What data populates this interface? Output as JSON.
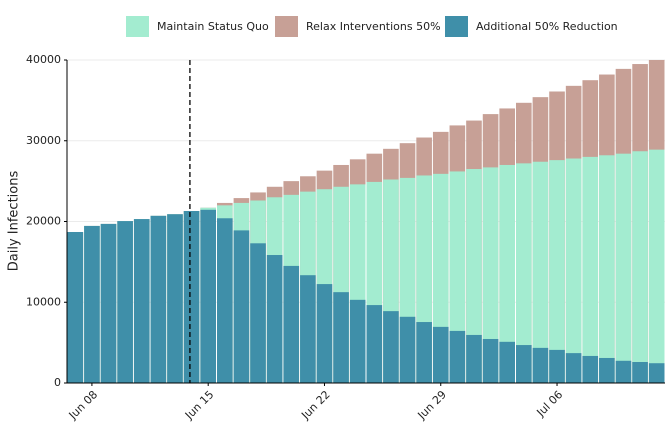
{
  "chart_data": {
    "type": "bar",
    "y_label": "Daily Infections",
    "categories": [
      null,
      "Jun 08",
      null,
      null,
      null,
      null,
      null,
      null,
      "Jun 15",
      null,
      null,
      null,
      null,
      null,
      null,
      "Jun 22",
      null,
      null,
      null,
      null,
      null,
      null,
      "Jun 29",
      null,
      null,
      null,
      null,
      null,
      null,
      "Jul 06",
      null,
      null,
      null,
      null,
      null,
      null
    ],
    "series": [
      {
        "name": "Relax Interventions 50%",
        "color": "#c7a096",
        "values": [
          18700,
          19450,
          19700,
          20050,
          20300,
          20700,
          20900,
          21300,
          21700,
          22300,
          22900,
          23600,
          24300,
          25000,
          25600,
          26300,
          27000,
          27700,
          28400,
          29000,
          29700,
          30400,
          31100,
          31900,
          32500,
          33300,
          34000,
          34700,
          35400,
          36100,
          36800,
          37500,
          38200,
          38900,
          39500,
          40000
        ]
      },
      {
        "name": "Maintain Status Quo",
        "color": "#a3ecd0",
        "values": [
          18700,
          19450,
          19700,
          20050,
          20300,
          20700,
          20900,
          21300,
          21700,
          22000,
          22300,
          22600,
          23000,
          23300,
          23700,
          24000,
          24300,
          24600,
          24900,
          25200,
          25400,
          25700,
          25900,
          26200,
          26500,
          26700,
          27000,
          27200,
          27400,
          27600,
          27800,
          28000,
          28200,
          28400,
          28700,
          28900
        ]
      },
      {
        "name": "Additional 50% Reduction",
        "color": "#3f8fa9",
        "values": [
          18700,
          19450,
          19700,
          20050,
          20300,
          20700,
          20900,
          21300,
          21450,
          20400,
          18900,
          17300,
          15850,
          14500,
          13350,
          12250,
          11250,
          10300,
          9650,
          8900,
          8200,
          7550,
          6950,
          6450,
          5950,
          5450,
          5100,
          4700,
          4350,
          4100,
          3700,
          3350,
          3100,
          2750,
          2600,
          2450
        ]
      }
    ],
    "legend_order": [
      1,
      0,
      2
    ],
    "legend_position": "top",
    "overlap": true,
    "reference_line": {
      "category_index": 7,
      "style": "dashed"
    },
    "ylim": [
      0,
      40000
    ],
    "yticks": [
      0,
      10000,
      20000,
      30000,
      40000
    ],
    "grid": true
  }
}
